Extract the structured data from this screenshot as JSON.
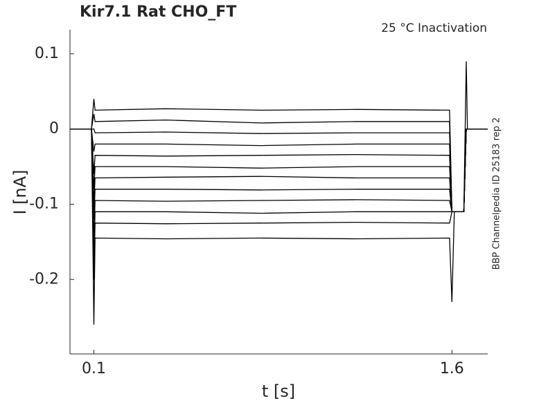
{
  "chart_data": {
    "type": "line",
    "title": "Kir7.1  Rat  CHO_FT",
    "annotation": "25 °C  Inactivation",
    "side_note": "BBP Channelpedia ID 25183 rep 2",
    "xlabel": "t [s]",
    "ylabel": "I [nA]",
    "x": [
      0,
      0.09,
      0.1,
      0.105,
      0.4,
      0.8,
      1.2,
      1.59,
      1.6,
      1.61,
      1.65,
      1.66,
      1.665,
      1.75
    ],
    "series": [
      {
        "color": "#000000",
        "values": [
          0,
          0,
          0.04,
          0.025,
          0.027,
          0.025,
          0.026,
          0.025,
          -0.11,
          -0.11,
          -0.11,
          0.09,
          0,
          0
        ]
      },
      {
        "color": "#000000",
        "values": [
          0,
          0,
          0.02,
          0.01,
          0.012,
          0.008,
          0.01,
          0.01,
          -0.11,
          -0.11,
          -0.11,
          0,
          0,
          0
        ]
      },
      {
        "color": "#000000",
        "values": [
          0,
          0,
          0,
          -0.005,
          -0.004,
          -0.006,
          -0.005,
          -0.005,
          -0.11,
          -0.11,
          -0.11,
          0,
          0,
          0
        ]
      },
      {
        "color": "#000000",
        "values": [
          0,
          0,
          -0.03,
          -0.02,
          -0.02,
          -0.022,
          -0.02,
          -0.02,
          -0.11,
          -0.11,
          -0.11,
          0,
          0,
          0
        ]
      },
      {
        "color": "#000000",
        "values": [
          0,
          0,
          -0.06,
          -0.035,
          -0.036,
          -0.035,
          -0.034,
          -0.035,
          -0.11,
          -0.11,
          -0.11,
          0,
          0,
          0
        ]
      },
      {
        "color": "#000000",
        "values": [
          0,
          0,
          -0.08,
          -0.05,
          -0.05,
          -0.052,
          -0.05,
          -0.05,
          -0.11,
          -0.11,
          -0.11,
          0,
          0,
          0
        ]
      },
      {
        "color": "#000000",
        "values": [
          0,
          0,
          -0.1,
          -0.065,
          -0.064,
          -0.063,
          -0.065,
          -0.065,
          -0.11,
          -0.11,
          -0.11,
          0,
          0,
          0
        ]
      },
      {
        "color": "#000000",
        "values": [
          0,
          0,
          -0.12,
          -0.08,
          -0.08,
          -0.081,
          -0.08,
          -0.08,
          -0.11,
          -0.11,
          -0.11,
          0,
          0,
          0
        ]
      },
      {
        "color": "#000000",
        "values": [
          0,
          0,
          -0.15,
          -0.095,
          -0.096,
          -0.095,
          -0.094,
          -0.095,
          -0.11,
          -0.11,
          -0.11,
          0,
          0,
          0
        ]
      },
      {
        "color": "#000000",
        "values": [
          0,
          0,
          -0.17,
          -0.11,
          -0.11,
          -0.112,
          -0.11,
          -0.11,
          -0.11,
          -0.11,
          -0.11,
          0,
          0,
          0
        ]
      },
      {
        "color": "#000000",
        "values": [
          0,
          0,
          -0.2,
          -0.125,
          -0.126,
          -0.125,
          -0.124,
          -0.125,
          -0.11,
          -0.11,
          -0.11,
          0,
          0,
          0
        ]
      },
      {
        "color": "#000000",
        "values": [
          0,
          0,
          -0.26,
          -0.145,
          -0.146,
          -0.145,
          -0.146,
          -0.145,
          -0.23,
          -0.11,
          -0.11,
          0,
          0,
          0
        ]
      }
    ],
    "xlim": [
      0,
      1.75
    ],
    "xticks": [
      0.1,
      1.6
    ],
    "ylim": [
      -0.299,
      0.132
    ],
    "yticks": [
      0.1,
      0,
      -0.1,
      -0.2
    ]
  }
}
